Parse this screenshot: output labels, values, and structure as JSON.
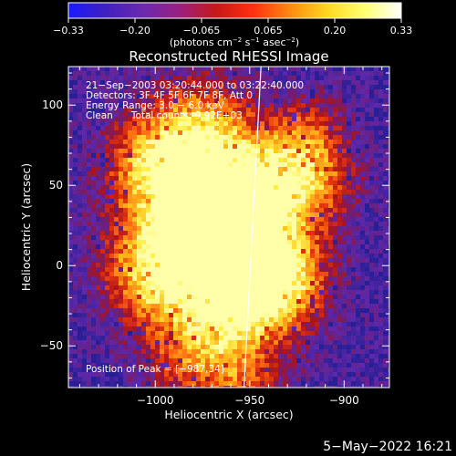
{
  "colorbar": {
    "ticks": [
      "−0.33",
      "−0.20",
      "−0.065",
      "0.065",
      "0.20",
      "0.33"
    ],
    "units_main": "(photons cm",
    "units_exp1": "−2",
    "units_mid": " s",
    "units_exp2": "−1",
    "units_end": " asec",
    "units_exp3": "−2",
    "units_close": ")",
    "palette": [
      "#1a1aff",
      "#4020c0",
      "#6a2ab0",
      "#9a2080",
      "#c81818",
      "#ff3010",
      "#ff8a10",
      "#ffd820",
      "#ffff70",
      "#ffffff"
    ]
  },
  "chart_data": {
    "type": "heatmap",
    "title": "Reconstructed RHESSI Image",
    "xlabel": "Heliocentric X (arcsec)",
    "ylabel": "Heliocentric Y (arcsec)",
    "xlim": [
      -1046,
      -876
    ],
    "ylim": [
      -76,
      124
    ],
    "x_ticks": [
      {
        "value": -1000,
        "label": "−1000"
      },
      {
        "value": -950,
        "label": "−950"
      },
      {
        "value": -900,
        "label": "−900"
      }
    ],
    "y_ticks": [
      {
        "value": 100,
        "label": "100"
      },
      {
        "value": 50,
        "label": "50"
      },
      {
        "value": 0,
        "label": "0"
      },
      {
        "value": -50,
        "label": "−50"
      }
    ],
    "color_range": [
      -0.33,
      0.33
    ],
    "annotations": [
      "21−Sep−2003 03:20:44.000 to 03:22:40.000",
      "Detectors: 3F 4F 5F 6F 7F 8F, Att 0",
      "Energy Range: 3.0 − 6.0 keV",
      "Clean      Total counts: 9.92E+03"
    ],
    "peak_label": "Position of Peak = [−987,34]",
    "peak": [
      -987,
      34
    ],
    "limb_line": [
      [
        -944,
        124
      ],
      [
        -953,
        -76
      ]
    ]
  },
  "footer": {
    "date": "5−May−2022 16:21"
  }
}
